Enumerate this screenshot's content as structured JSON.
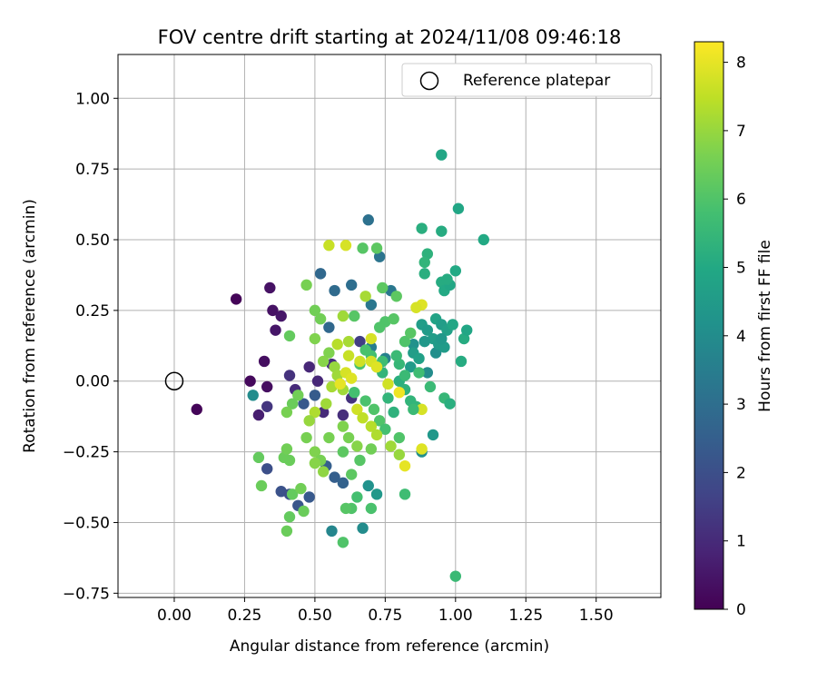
{
  "chart_data": {
    "type": "scatter",
    "title": "FOV centre drift starting at 2024/11/08 09:46:18",
    "xlabel": "Angular distance from reference (arcmin)",
    "ylabel": "Rotation from reference (arcmin)",
    "xlim": [
      -0.2,
      1.73
    ],
    "ylim": [
      -0.765,
      1.155
    ],
    "x_ticks": [
      "0.00",
      "0.25",
      "0.50",
      "0.75",
      "1.00",
      "1.25",
      "1.50"
    ],
    "y_ticks": [
      "−0.75",
      "−0.50",
      "−0.25",
      "0.00",
      "0.25",
      "0.50",
      "0.75",
      "1.00"
    ],
    "grid": true,
    "legend": {
      "placement": "upper right",
      "entries": [
        "Reference platepar"
      ]
    },
    "colorbar": {
      "label": "Hours from first FF file",
      "ticks": [
        "0",
        "1",
        "2",
        "3",
        "4",
        "5",
        "6",
        "7",
        "8"
      ],
      "range": [
        0,
        8.3
      ],
      "colormap": "viridis"
    },
    "reference_point": {
      "x": 0.0,
      "y": 0.0
    },
    "points": [
      [
        0.08,
        -0.1,
        0.1
      ],
      [
        0.22,
        0.29,
        0.1
      ],
      [
        0.27,
        0.0,
        0.2
      ],
      [
        0.32,
        0.07,
        0.3
      ],
      [
        0.33,
        -0.02,
        0.3
      ],
      [
        0.34,
        0.33,
        0.4
      ],
      [
        0.35,
        0.25,
        0.4
      ],
      [
        0.36,
        0.18,
        0.5
      ],
      [
        0.38,
        0.23,
        0.5
      ],
      [
        0.3,
        -0.12,
        0.7
      ],
      [
        0.33,
        -0.09,
        1.3
      ],
      [
        0.41,
        0.02,
        1.2
      ],
      [
        0.43,
        -0.03,
        1.0
      ],
      [
        0.48,
        0.05,
        0.9
      ],
      [
        0.51,
        0.0,
        0.9
      ],
      [
        0.53,
        -0.11,
        1.0
      ],
      [
        0.6,
        -0.12,
        1.1
      ],
      [
        0.63,
        -0.06,
        1.2
      ],
      [
        0.56,
        0.06,
        1.1
      ],
      [
        0.66,
        0.14,
        1.5
      ],
      [
        0.33,
        -0.31,
        2.0
      ],
      [
        0.38,
        -0.39,
        2.1
      ],
      [
        0.41,
        -0.4,
        2.0
      ],
      [
        0.44,
        -0.44,
        2.2
      ],
      [
        0.48,
        -0.41,
        2.3
      ],
      [
        0.54,
        -0.3,
        2.5
      ],
      [
        0.57,
        -0.34,
        2.5
      ],
      [
        0.6,
        -0.36,
        2.6
      ],
      [
        0.46,
        -0.08,
        2.3
      ],
      [
        0.5,
        -0.05,
        2.4
      ],
      [
        0.52,
        0.38,
        2.8
      ],
      [
        0.55,
        0.19,
        2.8
      ],
      [
        0.57,
        0.32,
        2.9
      ],
      [
        0.63,
        0.34,
        3.0
      ],
      [
        0.69,
        0.57,
        3.1
      ],
      [
        0.73,
        0.44,
        3.2
      ],
      [
        0.77,
        0.32,
        3.3
      ],
      [
        0.7,
        0.27,
        3.3
      ],
      [
        0.7,
        0.12,
        3.5
      ],
      [
        0.75,
        0.08,
        3.6
      ],
      [
        0.56,
        -0.53,
        3.8
      ],
      [
        0.67,
        -0.52,
        4.0
      ],
      [
        0.69,
        -0.37,
        4.2
      ],
      [
        0.72,
        -0.4,
        4.4
      ],
      [
        0.28,
        -0.05,
        4.0
      ],
      [
        0.9,
        0.03,
        4.0
      ],
      [
        0.93,
        0.1,
        4.1
      ],
      [
        0.88,
        -0.25,
        4.1
      ],
      [
        0.92,
        -0.19,
        4.4
      ],
      [
        0.85,
        0.13,
        4.2
      ],
      [
        0.95,
        0.8,
        4.9
      ],
      [
        1.01,
        0.61,
        4.9
      ],
      [
        1.1,
        0.5,
        5.0
      ],
      [
        0.95,
        0.53,
        5.1
      ],
      [
        0.88,
        0.54,
        5.2
      ],
      [
        0.9,
        0.45,
        5.3
      ],
      [
        0.89,
        0.42,
        5.4
      ],
      [
        0.89,
        0.38,
        5.2
      ],
      [
        0.95,
        0.35,
        5.1
      ],
      [
        0.96,
        0.32,
        5.0
      ],
      [
        0.98,
        0.34,
        4.9
      ],
      [
        1.0,
        0.39,
        5.0
      ],
      [
        0.97,
        0.36,
        5.1
      ],
      [
        0.93,
        0.22,
        4.8
      ],
      [
        0.95,
        0.2,
        4.6
      ],
      [
        0.97,
        0.18,
        4.7
      ],
      [
        0.99,
        0.2,
        4.9
      ],
      [
        1.03,
        0.15,
        5.1
      ],
      [
        1.04,
        0.18,
        4.9
      ],
      [
        1.02,
        0.07,
        5.1
      ],
      [
        0.88,
        0.2,
        4.6
      ],
      [
        0.9,
        0.18,
        4.5
      ],
      [
        0.92,
        0.15,
        4.6
      ],
      [
        0.94,
        0.13,
        4.5
      ],
      [
        0.96,
        0.12,
        4.5
      ],
      [
        0.85,
        0.1,
        4.6
      ],
      [
        0.87,
        0.08,
        4.7
      ],
      [
        0.84,
        0.05,
        4.5
      ],
      [
        0.89,
        0.14,
        4.4
      ],
      [
        0.95,
        0.15,
        4.4
      ],
      [
        0.8,
        0.0,
        5.2
      ],
      [
        0.82,
        -0.03,
        5.3
      ],
      [
        0.84,
        -0.07,
        5.4
      ],
      [
        0.86,
        -0.09,
        5.4
      ],
      [
        0.78,
        -0.11,
        5.3
      ],
      [
        0.76,
        -0.06,
        5.4
      ],
      [
        0.74,
        0.03,
        5.4
      ],
      [
        0.8,
        0.06,
        5.5
      ],
      [
        0.82,
        0.02,
        5.6
      ],
      [
        0.79,
        0.09,
        5.6
      ],
      [
        0.72,
        0.05,
        5.8
      ],
      [
        0.74,
        0.07,
        5.7
      ],
      [
        0.7,
        0.09,
        5.8
      ],
      [
        0.68,
        0.11,
        5.9
      ],
      [
        0.66,
        0.06,
        5.9
      ],
      [
        0.64,
        -0.04,
        5.8
      ],
      [
        0.68,
        -0.07,
        5.9
      ],
      [
        0.71,
        -0.1,
        6.0
      ],
      [
        0.73,
        -0.14,
        6.0
      ],
      [
        0.75,
        -0.17,
        5.8
      ],
      [
        0.8,
        -0.2,
        6.0
      ],
      [
        0.82,
        -0.4,
        5.7
      ],
      [
        0.65,
        -0.41,
        5.8
      ],
      [
        0.7,
        -0.45,
        5.9
      ],
      [
        0.63,
        -0.45,
        6.0
      ],
      [
        0.6,
        -0.57,
        6.0
      ],
      [
        0.61,
        -0.45,
        6.1
      ],
      [
        0.63,
        -0.33,
        6.2
      ],
      [
        0.66,
        -0.28,
        6.1
      ],
      [
        0.6,
        -0.25,
        6.2
      ],
      [
        0.3,
        -0.27,
        6.3
      ],
      [
        0.31,
        -0.37,
        6.4
      ],
      [
        0.39,
        -0.27,
        6.4
      ],
      [
        0.4,
        -0.24,
        6.5
      ],
      [
        0.41,
        -0.28,
        6.4
      ],
      [
        0.42,
        -0.4,
        6.3
      ],
      [
        0.45,
        -0.38,
        6.5
      ],
      [
        0.46,
        -0.46,
        6.4
      ],
      [
        0.41,
        -0.48,
        6.3
      ],
      [
        0.4,
        -0.53,
        6.4
      ],
      [
        0.47,
        -0.2,
        6.6
      ],
      [
        0.5,
        -0.25,
        6.7
      ],
      [
        0.52,
        -0.28,
        6.6
      ],
      [
        0.5,
        -0.29,
        6.8
      ],
      [
        0.53,
        -0.32,
        6.9
      ],
      [
        0.55,
        -0.2,
        6.6
      ],
      [
        0.44,
        -0.05,
        6.5
      ],
      [
        0.42,
        -0.08,
        6.4
      ],
      [
        0.4,
        -0.11,
        6.6
      ],
      [
        0.41,
        0.16,
        6.3
      ],
      [
        0.47,
        0.34,
        6.6
      ],
      [
        0.5,
        0.25,
        6.5
      ],
      [
        0.52,
        0.22,
        6.5
      ],
      [
        0.5,
        0.15,
        6.7
      ],
      [
        0.55,
        0.1,
        6.7
      ],
      [
        0.53,
        0.07,
        6.8
      ],
      [
        0.57,
        0.05,
        7.0
      ],
      [
        0.58,
        0.02,
        7.1
      ],
      [
        0.56,
        -0.02,
        7.2
      ],
      [
        0.6,
        -0.03,
        7.1
      ],
      [
        0.67,
        0.47,
        6.1
      ],
      [
        0.72,
        0.47,
        6.2
      ],
      [
        0.74,
        0.33,
        6.2
      ],
      [
        0.79,
        0.3,
        6.2
      ],
      [
        0.64,
        0.23,
        6.1
      ],
      [
        0.75,
        0.21,
        6.0
      ],
      [
        0.73,
        0.19,
        6.0
      ],
      [
        0.78,
        0.22,
        6.1
      ],
      [
        0.82,
        0.14,
        6.0
      ],
      [
        0.84,
        0.17,
        6.1
      ],
      [
        0.88,
        0.27,
        7.9
      ],
      [
        0.86,
        0.26,
        7.8
      ],
      [
        0.61,
        0.48,
        7.8
      ],
      [
        0.55,
        0.48,
        7.6
      ],
      [
        0.68,
        0.3,
        7.2
      ],
      [
        0.6,
        0.23,
        7.1
      ],
      [
        0.62,
        0.14,
        7.2
      ],
      [
        0.58,
        0.13,
        7.4
      ],
      [
        0.62,
        0.09,
        7.6
      ],
      [
        0.66,
        0.07,
        7.7
      ],
      [
        0.7,
        0.07,
        7.8
      ],
      [
        0.72,
        0.05,
        7.9
      ],
      [
        0.7,
        0.15,
        7.8
      ],
      [
        0.59,
        -0.01,
        8.0
      ],
      [
        0.61,
        0.03,
        7.8
      ],
      [
        0.63,
        0.01,
        7.9
      ],
      [
        0.65,
        -0.1,
        7.7
      ],
      [
        0.67,
        -0.13,
        7.5
      ],
      [
        0.7,
        -0.16,
        7.4
      ],
      [
        0.72,
        -0.19,
        7.3
      ],
      [
        0.77,
        -0.23,
        7.1
      ],
      [
        0.8,
        -0.26,
        7.0
      ],
      [
        0.88,
        -0.24,
        7.9
      ],
      [
        0.82,
        -0.3,
        8.0
      ],
      [
        0.88,
        -0.1,
        7.8
      ],
      [
        0.8,
        -0.04,
        8.1
      ],
      [
        0.76,
        -0.01,
        7.7
      ],
      [
        0.54,
        -0.08,
        7.1
      ],
      [
        0.5,
        -0.11,
        7.3
      ],
      [
        0.48,
        -0.14,
        7.0
      ],
      [
        1.0,
        -0.69,
        5.6
      ],
      [
        0.96,
        -0.06,
        5.5
      ],
      [
        0.98,
        -0.08,
        5.2
      ],
      [
        0.91,
        -0.02,
        5.6
      ],
      [
        0.87,
        0.03,
        5.7
      ],
      [
        0.85,
        -0.1,
        5.6
      ],
      [
        0.6,
        -0.16,
        6.7
      ],
      [
        0.62,
        -0.2,
        6.6
      ],
      [
        0.65,
        -0.23,
        6.8
      ],
      [
        0.7,
        -0.24,
        6.5
      ]
    ]
  }
}
